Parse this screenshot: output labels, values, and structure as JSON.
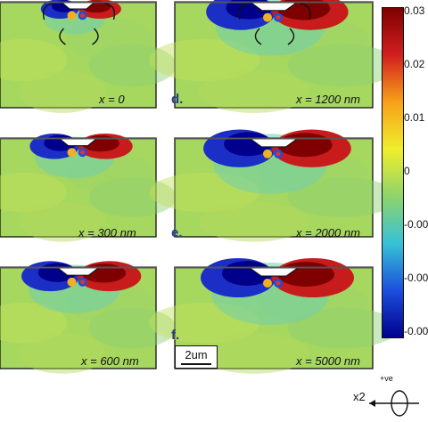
{
  "figure": {
    "panels": [
      {
        "id": "c",
        "label": "",
        "caption": "x = 0",
        "hasArrows": true,
        "intensity": 0.35
      },
      {
        "id": "d",
        "label": "d.",
        "caption": "x = 1200 nm",
        "hasArrows": true,
        "intensity": 0.9
      },
      {
        "id": "e0",
        "label": "",
        "caption": "x = 300 nm",
        "hasArrows": false,
        "intensity": 0.55
      },
      {
        "id": "e",
        "label": "e.",
        "caption": "x = 2000 nm",
        "hasArrows": false,
        "intensity": 0.95
      },
      {
        "id": "f0",
        "label": "",
        "caption": "x = 600 nm",
        "hasArrows": false,
        "intensity": 0.7
      },
      {
        "id": "f",
        "label": "f.",
        "caption": "x = 5000 nm",
        "hasArrows": false,
        "intensity": 1.0
      }
    ],
    "scalebar": "2um",
    "colorbar": {
      "ticks": [
        "0.03",
        "0.02",
        "0.01",
        "0",
        "-0.00",
        "-0.00",
        "-0.00"
      ],
      "colormap": [
        "#7f0000",
        "#d21f1f",
        "#f7a11a",
        "#f0ee2c",
        "#8fd36b",
        "#36c2d6",
        "#1c4fdc",
        "#00008f"
      ]
    },
    "axis": {
      "sign": "+ve",
      "label": "x2"
    },
    "colors": {
      "background": "#a6d75f",
      "frame": "#111111",
      "label": "#2b3a8c"
    }
  }
}
